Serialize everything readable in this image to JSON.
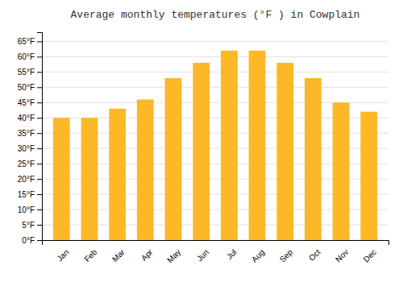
{
  "chart_data": {
    "type": "bar",
    "title": "Average monthly temperatures (°F ) in Cowplain",
    "categories": [
      "Jan",
      "Feb",
      "Mar",
      "Apr",
      "May",
      "Jun",
      "Jul",
      "Aug",
      "Sep",
      "Oct",
      "Nov",
      "Dec"
    ],
    "values": [
      40,
      40,
      43,
      46,
      53,
      58,
      62,
      62,
      58,
      53,
      45,
      42
    ],
    "color": "#FDB827",
    "ylim": [
      0,
      68
    ],
    "yticks": [
      {
        "value": 0,
        "label": "0°F"
      },
      {
        "value": 5,
        "label": "5°F"
      },
      {
        "value": 10,
        "label": "10°F"
      },
      {
        "value": 15,
        "label": "15°F"
      },
      {
        "value": 20,
        "label": "20°F"
      },
      {
        "value": 25,
        "label": "25°F"
      },
      {
        "value": 30,
        "label": "30°F"
      },
      {
        "value": 35,
        "label": "35°F"
      },
      {
        "value": 40,
        "label": "40°F"
      },
      {
        "value": 45,
        "label": "45°F"
      },
      {
        "value": 50,
        "label": "50°F"
      },
      {
        "value": 55,
        "label": "55°F"
      },
      {
        "value": 60,
        "label": "60°F"
      },
      {
        "value": 65,
        "label": "65°F"
      }
    ],
    "grid": true
  }
}
